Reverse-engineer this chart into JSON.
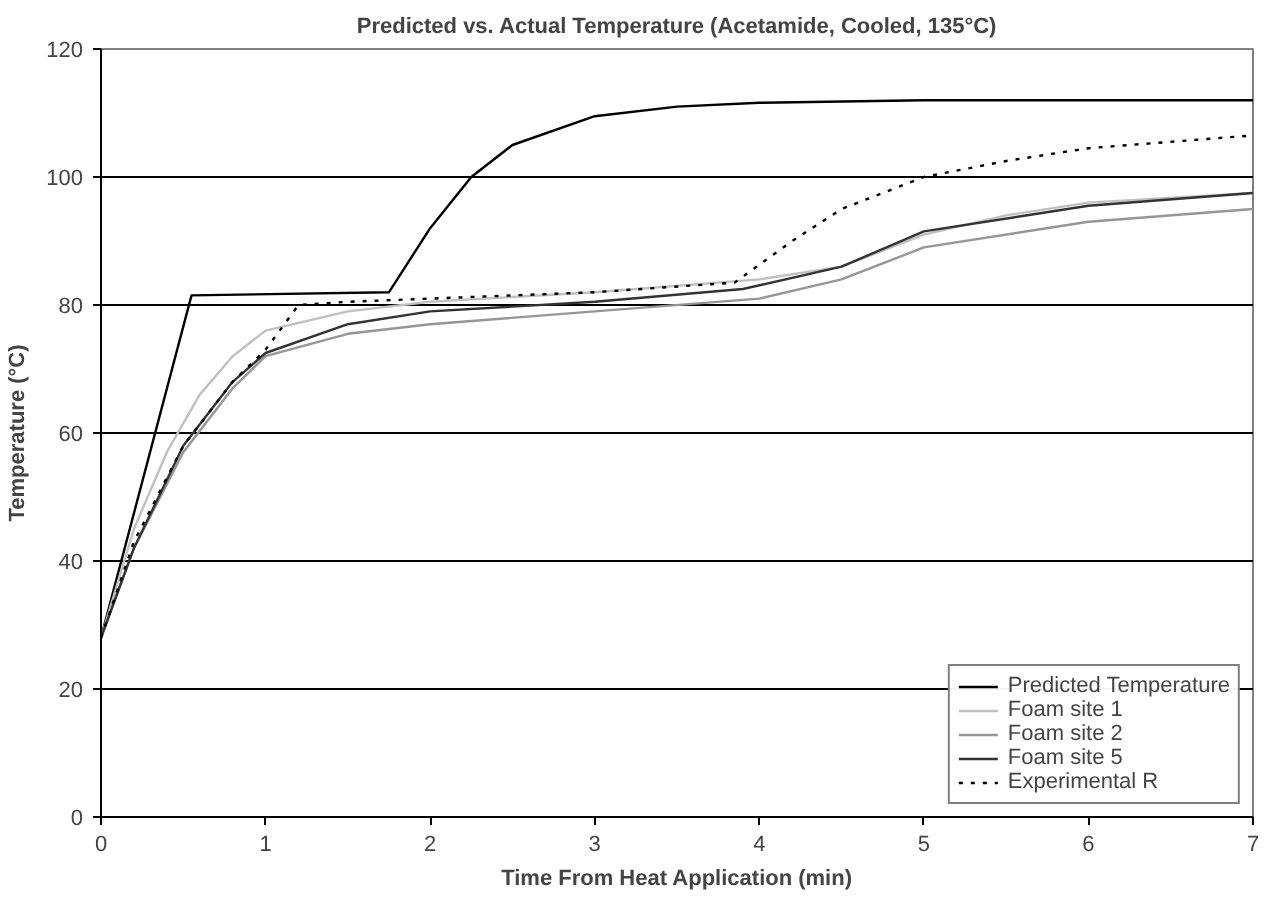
{
  "chart_data": {
    "type": "line",
    "title": "Predicted vs. Actual Temperature (Acetamide, Cooled, 135°C)",
    "xlabel": "Time From Heat Application (min)",
    "ylabel": "Temperature (°C)",
    "xlim": [
      0,
      7
    ],
    "xticks": [
      0,
      1,
      2,
      3,
      4,
      5,
      6,
      7
    ],
    "ylim": [
      0,
      120
    ],
    "yticks": [
      0,
      20,
      40,
      60,
      80,
      100,
      120
    ],
    "grid": "y",
    "legend": "bottom right",
    "marker": "none",
    "line_style": "solid",
    "series": [
      {
        "name": "Predicted Temperature",
        "color": "#000000",
        "x": [
          0,
          0.55,
          1.75,
          2,
          2.25,
          2.5,
          3,
          3.5,
          4,
          5,
          7
        ],
        "values": [
          28,
          81.5,
          82,
          92,
          100,
          105,
          109.5,
          111,
          111.6,
          112,
          112
        ]
      },
      {
        "name": "Foam site 1",
        "color": "#c0c0c0",
        "x": [
          0,
          0.2,
          0.4,
          0.6,
          0.8,
          1,
          1.5,
          2,
          3,
          4,
          4.5,
          5,
          5.5,
          6,
          7
        ],
        "values": [
          28,
          45,
          57,
          66,
          72,
          76,
          79,
          80.5,
          82,
          84,
          86,
          91,
          94,
          96,
          97.5
        ]
      },
      {
        "name": "Foam site 2",
        "color": "#969696",
        "x": [
          0,
          0.2,
          0.5,
          0.8,
          1,
          1.5,
          2,
          3,
          4,
          4.5,
          5,
          6,
          7
        ],
        "values": [
          28,
          42,
          57,
          67,
          72,
          75.5,
          77,
          79,
          81,
          84,
          89,
          93,
          95
        ]
      },
      {
        "name": "Foam site 5",
        "color": "#333333",
        "x": [
          0,
          0.2,
          0.5,
          0.8,
          1,
          1.5,
          2,
          3,
          3.9,
          4.5,
          5,
          6,
          7
        ],
        "values": [
          28,
          42,
          58,
          68,
          72.5,
          77,
          79,
          80.5,
          82.5,
          86,
          91.5,
          95.5,
          97.5
        ]
      },
      {
        "name": "Experimental R",
        "color": "#000000",
        "line_style": "dotted",
        "x": [
          0,
          0.2,
          0.5,
          0.8,
          1,
          1.2,
          1.5,
          2,
          3,
          3.85,
          4.2,
          4.5,
          5,
          5.5,
          6,
          7
        ],
        "values": [
          28,
          43,
          58,
          68,
          73,
          80,
          80.5,
          81,
          82,
          83.5,
          90,
          95,
          100,
          102.5,
          104.5,
          106.5
        ]
      }
    ]
  }
}
